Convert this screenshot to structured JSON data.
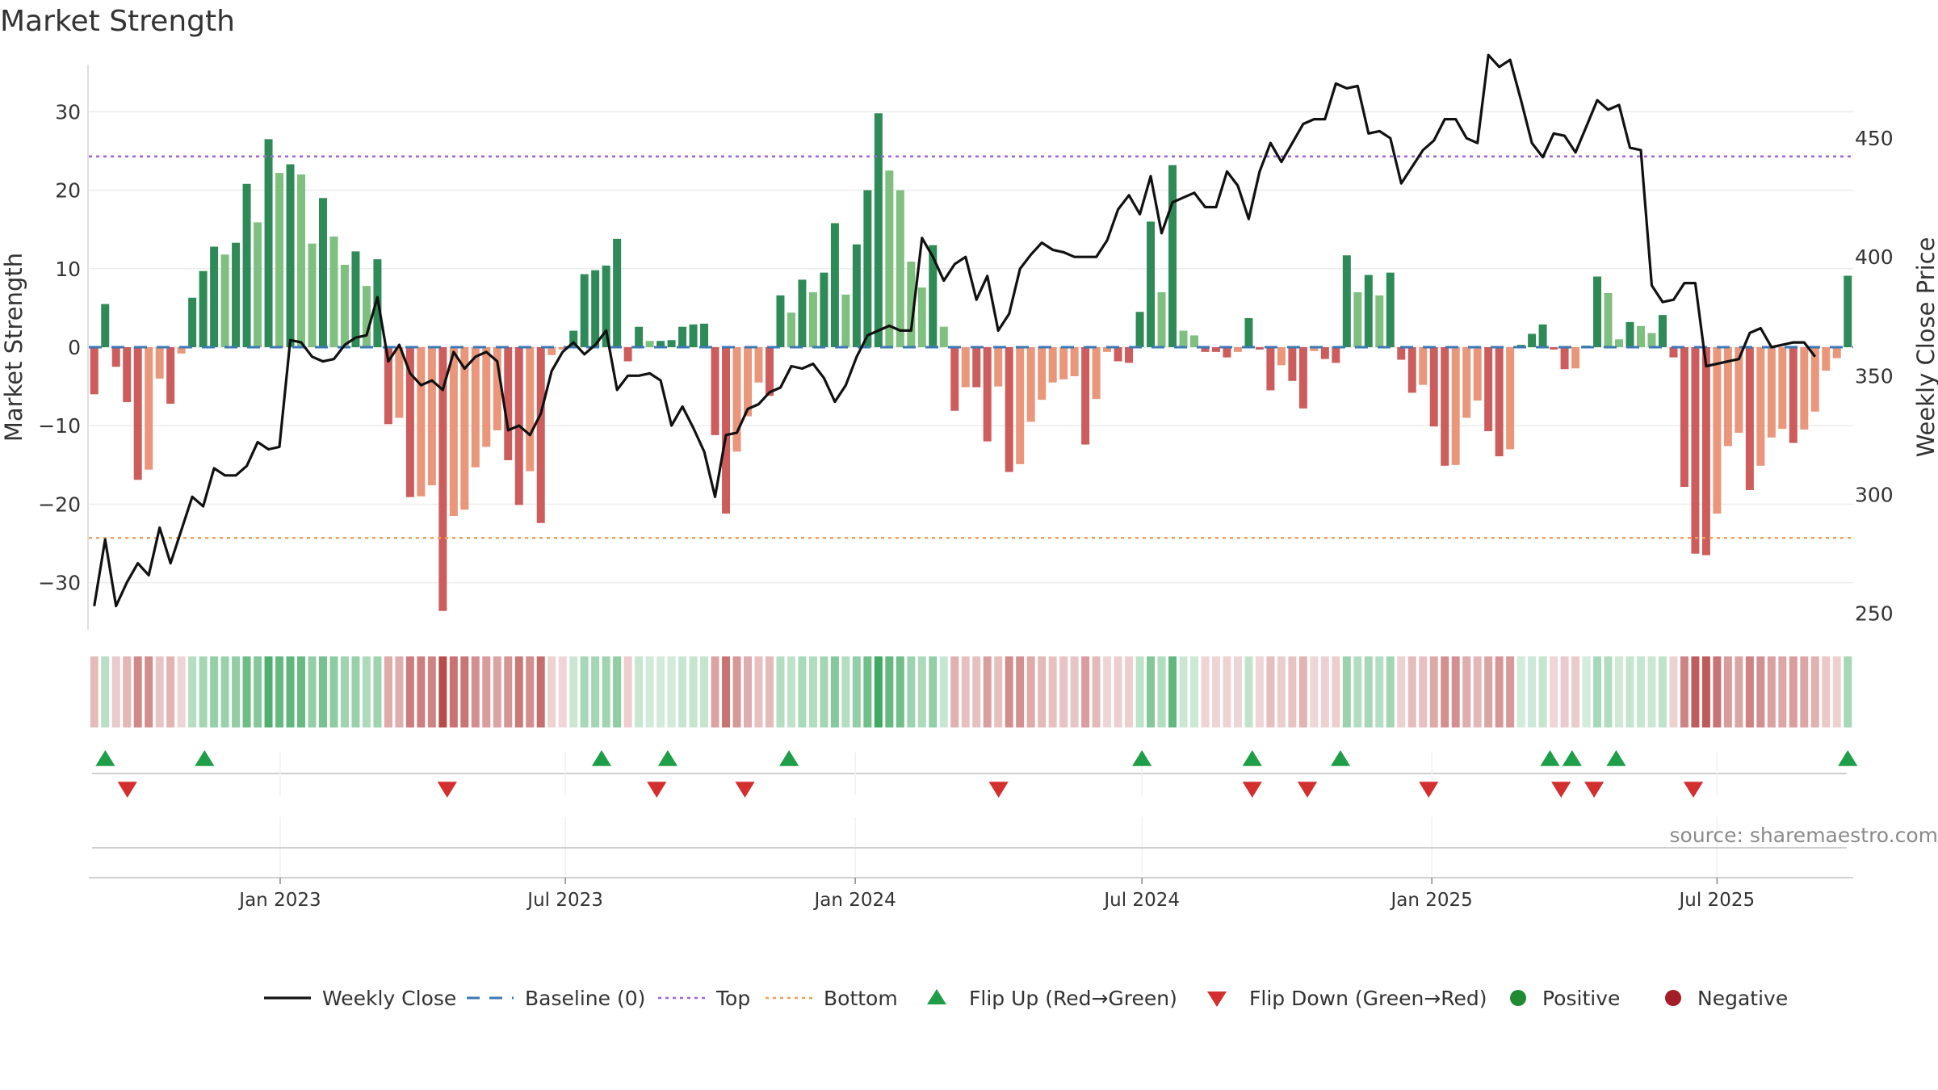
{
  "chart_data": {
    "type": "bar",
    "title": "Market Strength",
    "source": "source: sharemaestro.com",
    "ylabel": "Market Strength",
    "y2label": "Weekly Close Price",
    "ylim": [
      -36,
      36
    ],
    "y2lim": [
      243,
      481
    ],
    "yticks": [
      30,
      20,
      10,
      0,
      -10,
      -20,
      -30
    ],
    "y2ticks": [
      450,
      400,
      350,
      300,
      250
    ],
    "top_line": 24.3,
    "bottom_line": -24.3,
    "x_start": "2022-09-05",
    "x_end": "2025-09-22",
    "x_ticks": [
      {
        "date": "2023-01-01",
        "label": "Jan 2023"
      },
      {
        "date": "2023-07-01",
        "label": "Jul 2023"
      },
      {
        "date": "2024-01-01",
        "label": "Jan 2024"
      },
      {
        "date": "2024-07-01",
        "label": "Jul 2024"
      },
      {
        "date": "2025-01-01",
        "label": "Jan 2025"
      },
      {
        "date": "2025-07-01",
        "label": "Jul 2025"
      }
    ],
    "strength": [
      -6,
      5.5,
      -2.5,
      -7,
      -16.9,
      -15.6,
      -4,
      -7.2,
      -0.8,
      6.3,
      9.7,
      12.8,
      11.8,
      13.3,
      20.8,
      15.9,
      26.5,
      22.2,
      23.3,
      22,
      13.2,
      19,
      14.1,
      10.5,
      12.2,
      7.8,
      11.2,
      -9.8,
      -9,
      -19.1,
      -19,
      -17.6,
      -33.6,
      -21.5,
      -20.7,
      -15.3,
      -12.7,
      -10.6,
      -14.4,
      -20.1,
      -15.8,
      -22.4,
      -1,
      -0.3,
      2.1,
      9.3,
      9.8,
      10.4,
      13.8,
      -1.8,
      2.6,
      0.8,
      0.8,
      0.9,
      2.6,
      2.9,
      3,
      -11.2,
      -21.2,
      -13.3,
      -8.8,
      -4.5,
      -6.2,
      6.6,
      4.4,
      8.6,
      7,
      9.5,
      15.8,
      6.7,
      13.1,
      20,
      29.8,
      22.5,
      20,
      10.9,
      7.6,
      13,
      2.6,
      -8.1,
      -5.1,
      -5.1,
      -12,
      -5,
      -15.9,
      -14.9,
      -9.5,
      -6.7,
      -4.5,
      -4.1,
      -3.7,
      -12.4,
      -6.6,
      -0.6,
      -1.8,
      -2,
      4.5,
      16,
      7,
      23.2,
      2.1,
      1.5,
      -0.6,
      -0.6,
      -1.3,
      -0.6,
      3.7,
      -0.3,
      -5.5,
      -2.3,
      -4.3,
      -7.8,
      -0.5,
      -1.5,
      -2,
      11.7,
      7,
      9.2,
      6.6,
      9.5,
      -1.6,
      -5.8,
      -4.8,
      -10.1,
      -15.1,
      -15,
      -9,
      -6.8,
      -10.7,
      -13.9,
      -13,
      0.3,
      1.7,
      2.9,
      -0.3,
      -2.8,
      -2.7,
      0.2,
      9,
      6.9,
      1,
      3.2,
      2.7,
      1.8,
      4.1,
      -1.3,
      -17.8,
      -26.3,
      -26.5,
      -21.2,
      -12.6,
      -10.9,
      -18.2,
      -15.1,
      -11.5,
      -10.4,
      -12.2,
      -10.5,
      -8.2,
      -3,
      -1.4,
      9.1
    ],
    "close": [
      253,
      281,
      253,
      263,
      271,
      266,
      286,
      271,
      285,
      299,
      295,
      311,
      308,
      308,
      312,
      322,
      319,
      320,
      365,
      364,
      358,
      356,
      357,
      363,
      366,
      367,
      383,
      356,
      363,
      351,
      346,
      348,
      344,
      360,
      353,
      358,
      360,
      356,
      327,
      329,
      325,
      334,
      352,
      360,
      364,
      359,
      363,
      369,
      344,
      350,
      350,
      351,
      348,
      329,
      337,
      328,
      318,
      299,
      325,
      326,
      336,
      338,
      343,
      345,
      354,
      353,
      355,
      349,
      339,
      346,
      358,
      367,
      369,
      371,
      369,
      369,
      408,
      400,
      390,
      397,
      400,
      382,
      392,
      369,
      376,
      395,
      401,
      406,
      403,
      402,
      400,
      400,
      400,
      407,
      420,
      426,
      418,
      434,
      410,
      423,
      425,
      427,
      421,
      421,
      436,
      430,
      416,
      436,
      448,
      440,
      448,
      456,
      458,
      458,
      473,
      471,
      472,
      452,
      453,
      450,
      431,
      438,
      445,
      449,
      458,
      458,
      450,
      448,
      485,
      480,
      483,
      466,
      448,
      442,
      452,
      451,
      444,
      455,
      466,
      462,
      464,
      446,
      445,
      388,
      381,
      382,
      389,
      389,
      354,
      355,
      356,
      357,
      368,
      370,
      362,
      363,
      364,
      364,
      358
    ],
    "strength_series_name": "Market Strength",
    "close_series_name": "Weekly Close",
    "flip_up": [
      "2022-09-12",
      "2022-11-14",
      "2023-07-24",
      "2023-09-04",
      "2023-11-20",
      "2024-07-01",
      "2024-09-09",
      "2024-11-04",
      "2025-03-17",
      "2025-03-31",
      "2025-04-28",
      "2025-09-22"
    ],
    "flip_down": [
      "2022-09-26",
      "2023-04-17",
      "2023-08-28",
      "2023-10-23",
      "2024-04-01",
      "2024-09-09",
      "2024-10-14",
      "2024-12-30",
      "2025-03-24",
      "2025-04-14",
      "2025-06-16"
    ],
    "legend_position": "bottom",
    "legend": [
      {
        "type": "line",
        "label": "Weekly Close",
        "color": "#111111"
      },
      {
        "type": "dash",
        "label": "Baseline (0)",
        "color": "#3b79b5"
      },
      {
        "type": "dot",
        "label": "Top",
        "color": "#a164d8"
      },
      {
        "type": "dot",
        "label": "Bottom",
        "color": "#f0a05a"
      },
      {
        "type": "tri-up",
        "label": "Flip Up (Red→Green)",
        "color": "#1f9e4a"
      },
      {
        "type": "tri-down",
        "label": "Flip Down (Green→Red)",
        "color": "#d32f2f"
      },
      {
        "type": "circle",
        "label": "Positive",
        "color": "#1f8a32"
      },
      {
        "type": "circle",
        "label": "Negative",
        "color": "#a51e27"
      }
    ],
    "colors": {
      "pos_strong": "#2e8b57",
      "pos_weak": "#7fbf7f",
      "neg_strong": "#cd5c5c",
      "neg_weak": "#e9967a",
      "close": "#111111",
      "baseline": "#3b79b5",
      "top": "#a164d8",
      "bottom": "#f0a05a"
    }
  }
}
